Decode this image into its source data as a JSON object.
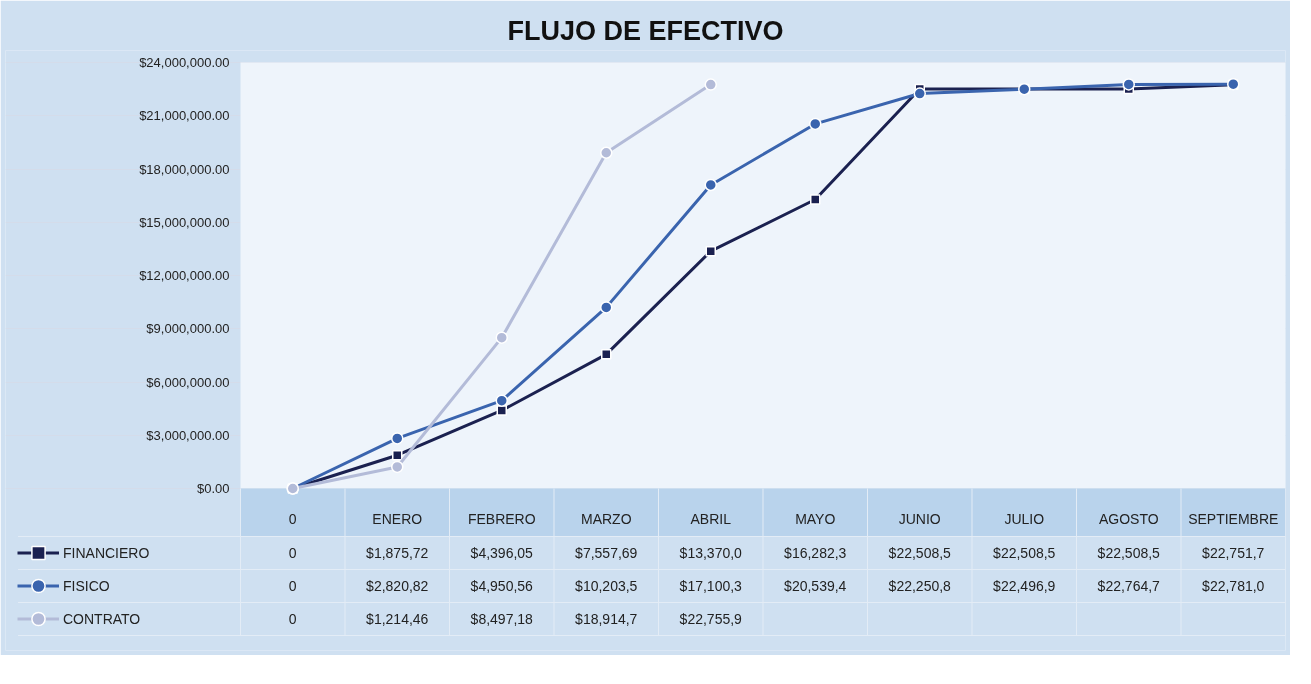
{
  "chart_data": {
    "type": "line",
    "title": "FLUJO DE EFECTIVO",
    "categories": [
      "0",
      "ENERO",
      "FEBRERO",
      "MARZO",
      "ABRIL",
      "MAYO",
      "JUNIO",
      "JULIO",
      "AGOSTO",
      "SEPTIEMBRE"
    ],
    "series": [
      {
        "name": "FINANCIERO",
        "color": "#1b2150",
        "marker": "square",
        "values": [
          0,
          1875720,
          4396050,
          7557690,
          13370000,
          16282300,
          22508500,
          22508500,
          22508500,
          22751700
        ],
        "value_labels": [
          "0",
          "$1,875,72",
          "$4,396,05",
          "$7,557,69",
          "$13,370,0",
          "$16,282,3",
          "$22,508,5",
          "$22,508,5",
          "$22,508,5",
          "$22,751,7"
        ]
      },
      {
        "name": "FISICO",
        "color": "#3a64ae",
        "marker": "circle",
        "values": [
          0,
          2820820,
          4950560,
          10203500,
          17100300,
          20539400,
          22250800,
          22496900,
          22764700,
          22781000
        ],
        "value_labels": [
          "0",
          "$2,820,82",
          "$4,950,56",
          "$10,203,5",
          "$17,100,3",
          "$20,539,4",
          "$22,250,8",
          "$22,496,9",
          "$22,764,7",
          "$22,781,0"
        ]
      },
      {
        "name": "CONTRATO",
        "color": "#b3bbd8",
        "marker": "circle",
        "values": [
          0,
          1214460,
          8497180,
          18914700,
          22755900,
          null,
          null,
          null,
          null,
          null
        ],
        "value_labels": [
          "0",
          "$1,214,46",
          "$8,497,18",
          "$18,914,7",
          "$22,755,9",
          null,
          null,
          null,
          null,
          null
        ]
      }
    ],
    "ylim": [
      0,
      24000000
    ],
    "yticks": [
      {
        "value": 0,
        "label": "$0.00"
      },
      {
        "value": 3000000,
        "label": "$3,000,000.00"
      },
      {
        "value": 6000000,
        "label": "$6,000,000.00"
      },
      {
        "value": 9000000,
        "label": "$9,000,000.00"
      },
      {
        "value": 12000000,
        "label": "$12,000,000.00"
      },
      {
        "value": 15000000,
        "label": "$15,000,000.00"
      },
      {
        "value": 18000000,
        "label": "$18,000,000.00"
      },
      {
        "value": 21000000,
        "label": "$21,000,000.00"
      },
      {
        "value": 24000000,
        "label": "$24,000,000.00"
      }
    ],
    "grid": "y",
    "legend": "bottom",
    "data_labels": true,
    "line_style": "solid"
  }
}
